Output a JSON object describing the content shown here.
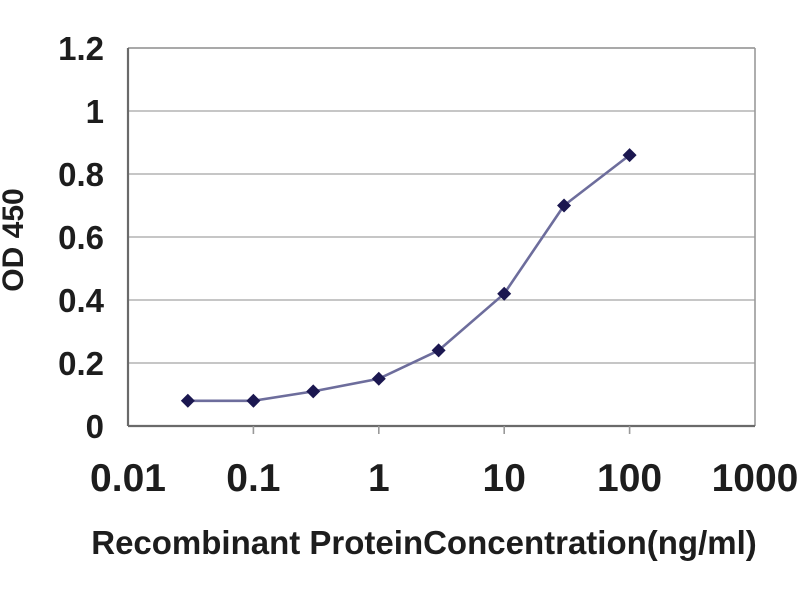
{
  "figure": {
    "kind": "ELISA standard-curve line chart",
    "background": "#ffffff"
  },
  "chart_data": {
    "type": "line",
    "title": "",
    "xlabel": "Recombinant ProteinConcentration(ng/ml)",
    "ylabel": "OD 450",
    "x_scale": "log",
    "y_scale": "linear",
    "xlim": [
      0.01,
      1000
    ],
    "ylim": [
      0,
      1.2
    ],
    "grid": "horizontal",
    "legend_position": "none",
    "x_ticks": {
      "values": [
        0.01,
        0.1,
        1,
        10,
        100,
        1000
      ],
      "labels": [
        "0.01",
        "0.1",
        "1",
        "10",
        "100",
        "1000"
      ]
    },
    "y_ticks": {
      "values": [
        0,
        0.2,
        0.4,
        0.6,
        0.8,
        1,
        1.2
      ],
      "labels": [
        "0",
        "0.2",
        "0.4",
        "0.6",
        "0.8",
        "1",
        "1.2"
      ]
    },
    "series": [
      {
        "name": "OD 450",
        "marker": "diamond",
        "x": [
          0.03,
          0.1,
          0.3,
          1,
          3,
          10,
          30,
          100
        ],
        "y": [
          0.08,
          0.08,
          0.11,
          0.15,
          0.24,
          0.42,
          0.7,
          0.86
        ]
      }
    ],
    "colors": {
      "marker": "#1b1750",
      "line": "#6d6d9c",
      "grid": "#b3b3b3",
      "axis": "#6a6a6a",
      "border": "#999999",
      "text": "#1d1d1d"
    }
  }
}
